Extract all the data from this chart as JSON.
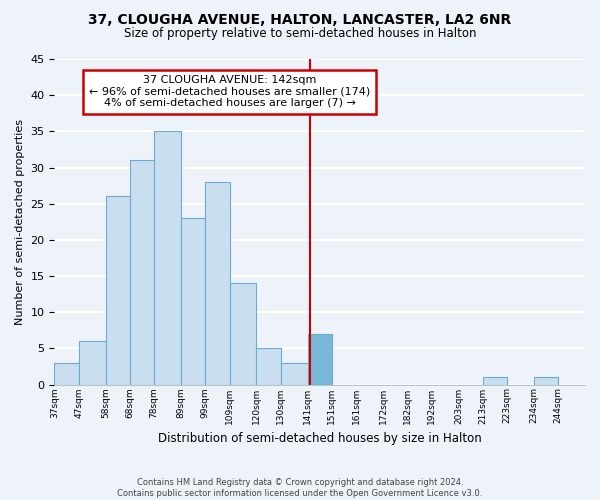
{
  "title": "37, CLOUGHA AVENUE, HALTON, LANCASTER, LA2 6NR",
  "subtitle": "Size of property relative to semi-detached houses in Halton",
  "xlabel": "Distribution of semi-detached houses by size in Halton",
  "ylabel": "Number of semi-detached properties",
  "bin_labels": [
    "37sqm",
    "47sqm",
    "58sqm",
    "68sqm",
    "78sqm",
    "89sqm",
    "99sqm",
    "109sqm",
    "120sqm",
    "130sqm",
    "141sqm",
    "151sqm",
    "161sqm",
    "172sqm",
    "182sqm",
    "192sqm",
    "203sqm",
    "213sqm",
    "223sqm",
    "234sqm",
    "244sqm"
  ],
  "bin_edges": [
    37,
    47,
    58,
    68,
    78,
    89,
    99,
    109,
    120,
    130,
    141,
    151,
    161,
    172,
    182,
    192,
    203,
    213,
    223,
    234,
    244,
    255
  ],
  "counts": [
    3,
    6,
    26,
    31,
    35,
    23,
    28,
    14,
    5,
    3,
    7,
    0,
    0,
    0,
    0,
    0,
    0,
    1,
    0,
    1,
    0
  ],
  "bar_color": "#c9dff0",
  "bar_edge_color": "#6aaad4",
  "highlight_bin_index": 10,
  "highlight_bar_color": "#7ab8d9",
  "property_line_x": 142,
  "annotation_title": "37 CLOUGHA AVENUE: 142sqm",
  "annotation_line1": "← 96% of semi-detached houses are smaller (174)",
  "annotation_line2": "4% of semi-detached houses are larger (7) →",
  "annotation_box_color": "#ffffff",
  "annotation_box_edge": "#cc0000",
  "line_color": "#cc0000",
  "ylim": [
    0,
    45
  ],
  "yticks": [
    0,
    5,
    10,
    15,
    20,
    25,
    30,
    35,
    40,
    45
  ],
  "footer_line1": "Contains HM Land Registry data © Crown copyright and database right 2024.",
  "footer_line2": "Contains public sector information licensed under the Open Government Licence v3.0.",
  "background_color": "#eef2f9",
  "grid_color": "#ffffff"
}
